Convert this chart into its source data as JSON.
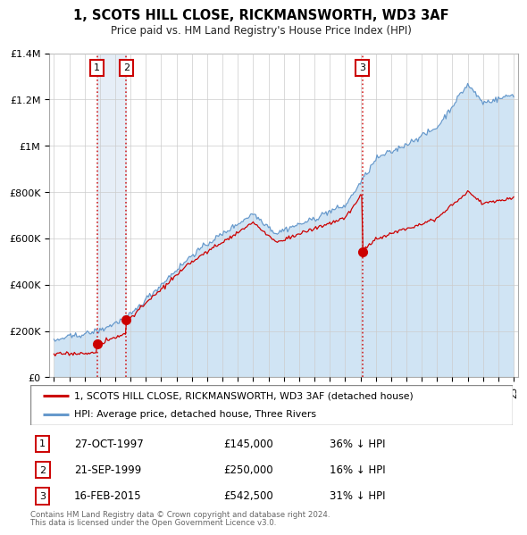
{
  "title": "1, SCOTS HILL CLOSE, RICKMANSWORTH, WD3 3AF",
  "subtitle": "Price paid vs. HM Land Registry's House Price Index (HPI)",
  "legend_line1": "1, SCOTS HILL CLOSE, RICKMANSWORTH, WD3 3AF (detached house)",
  "legend_line2": "HPI: Average price, detached house, Three Rivers",
  "sales": [
    {
      "label": 1,
      "date": "27-OCT-1997",
      "price": 145000,
      "x": 1997.82,
      "pct": "36% ↓ HPI"
    },
    {
      "label": 2,
      "date": "21-SEP-1999",
      "price": 250000,
      "x": 1999.72,
      "pct": "16% ↓ HPI"
    },
    {
      "label": 3,
      "date": "16-FEB-2015",
      "price": 542500,
      "x": 2015.12,
      "pct": "31% ↓ HPI"
    }
  ],
  "footer1": "Contains HM Land Registry data © Crown copyright and database right 2024.",
  "footer2": "This data is licensed under the Open Government Licence v3.0.",
  "red_color": "#cc0000",
  "blue_color": "#6699cc",
  "blue_fill": "#d0e4f4",
  "shade_fill": "#dce8f5",
  "ylim": [
    0,
    1400000
  ],
  "xlim_start": 1994.7,
  "xlim_end": 2025.3,
  "hpi_seed": 42,
  "red_seed": 17
}
